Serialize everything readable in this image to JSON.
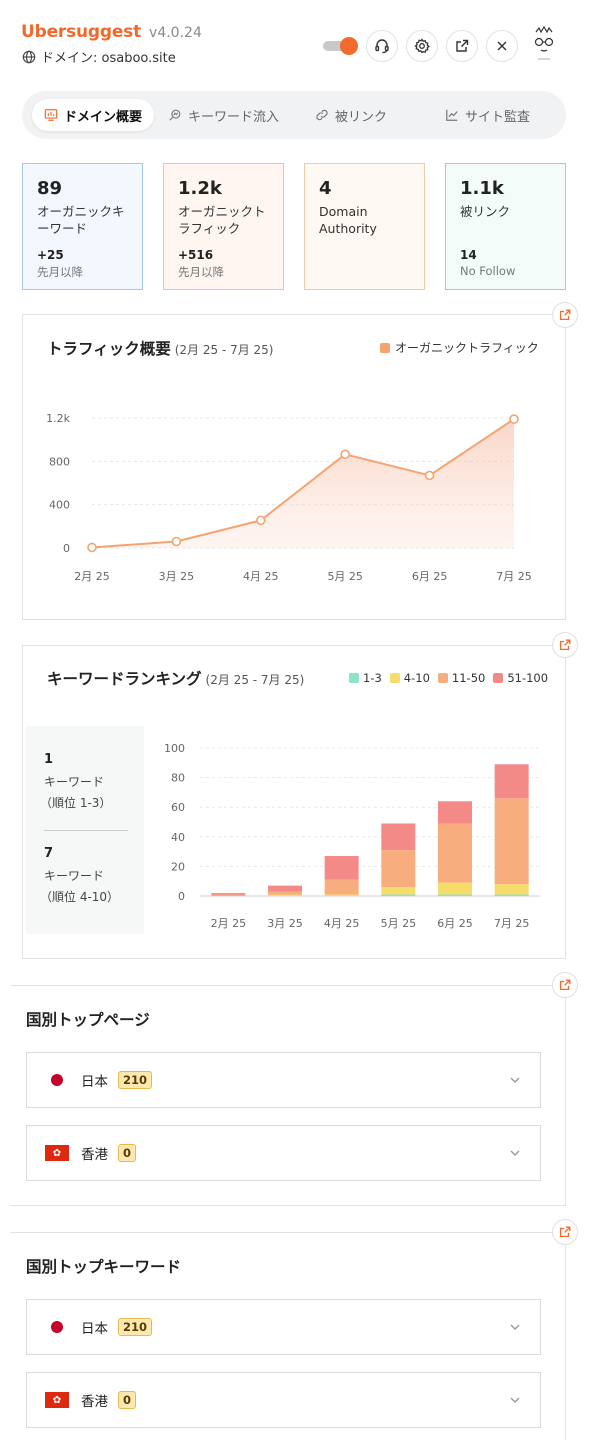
{
  "header": {
    "brand": "Ubersuggest",
    "version": "v4.0.24",
    "domain_label": "ドメイン: osaboo.site",
    "icons": [
      "globe-icon",
      "headset-icon",
      "gear-icon",
      "external-link-icon",
      "close-icon"
    ]
  },
  "tabs": [
    {
      "label": "ドメイン概要",
      "icon": "monitor-chart-icon",
      "active": true
    },
    {
      "label": "キーワード流入",
      "icon": "keyword-search-icon",
      "active": false
    },
    {
      "label": "被リンク",
      "icon": "link-icon",
      "active": false
    },
    {
      "label": "サイト監査",
      "icon": "line-chart-icon",
      "active": false
    }
  ],
  "cards": [
    {
      "value": "89",
      "label": "オーガニックキーワード",
      "delta": "+25",
      "sub": "先月以降",
      "border": "#a9c6ec",
      "bg": "#f3f8fe"
    },
    {
      "value": "1.2k",
      "label": "オーガニックトラフィック",
      "delta": "+516",
      "sub": "先月以降",
      "border": "#f2c2a8",
      "bg": "#fff6f2"
    },
    {
      "value": "4",
      "label": "Domain Authority",
      "delta": "",
      "sub": "",
      "border": "#f4c9a5",
      "bg": "#fff9f4"
    },
    {
      "value": "1.1k",
      "label": "被リンク",
      "delta": "14",
      "sub": "No Follow",
      "border": "#8ed8c6",
      "bg": "#f3fcf9"
    }
  ],
  "traffic": {
    "title": "トラフィック概要",
    "range": "(2月 25 - 7月 25)",
    "legend": "オーガニックトラフィック"
  },
  "ranking": {
    "title": "キーワードランキング",
    "range": "(2月 25 - 7月 25)",
    "legend": [
      "1-3",
      "4-10",
      "11-50",
      "51-100"
    ],
    "side": {
      "top_count": "1",
      "top_label": "キーワード",
      "top_sub": "（順位 1-3）",
      "mid_count": "7",
      "mid_label": "キーワード",
      "mid_sub": "（順位 4-10）"
    }
  },
  "top_pages": {
    "title": "国別トップページ",
    "rows": [
      {
        "country": "日本",
        "count": "210",
        "flag": "jp"
      },
      {
        "country": "香港",
        "count": "0",
        "flag": "hk"
      }
    ]
  },
  "top_keywords": {
    "title": "国別トップキーワード",
    "rows": [
      {
        "country": "日本",
        "count": "210",
        "flag": "jp"
      },
      {
        "country": "香港",
        "count": "0",
        "flag": "hk"
      }
    ]
  },
  "colors": {
    "accent": "#f26b2c",
    "traffic_line": "#f3a470",
    "rank_1_3": "#8ee4c7",
    "rank_4_10": "#f6dd6a",
    "rank_11_50": "#f7ad7d",
    "rank_51_100": "#f48a87"
  },
  "chart_data": [
    {
      "type": "area",
      "title": "トラフィック概要",
      "categories": [
        "2月 25",
        "3月 25",
        "4月 25",
        "5月 25",
        "6月 25",
        "7月 25"
      ],
      "series": [
        {
          "name": "オーガニックトラフィック",
          "values": [
            5,
            60,
            255,
            865,
            670,
            1190
          ]
        }
      ],
      "y_ticks": [
        "0",
        "400",
        "800",
        "1.2k"
      ],
      "ylim": [
        0,
        1200
      ],
      "grid": true,
      "legend_position": "top-right"
    },
    {
      "type": "bar",
      "stacked": true,
      "title": "キーワードランキング",
      "categories": [
        "2月 25",
        "3月 25",
        "4月 25",
        "5月 25",
        "6月 25",
        "7月 25"
      ],
      "series": [
        {
          "name": "1-3",
          "values": [
            0,
            0,
            0,
            1,
            1,
            1
          ]
        },
        {
          "name": "4-10",
          "values": [
            0,
            1,
            1,
            5,
            8,
            7
          ]
        },
        {
          "name": "11-50",
          "values": [
            1,
            2,
            10,
            25,
            40,
            58
          ]
        },
        {
          "name": "51-100",
          "values": [
            1,
            4,
            16,
            18,
            15,
            23
          ]
        }
      ],
      "y_ticks": [
        "0",
        "20",
        "40",
        "60",
        "80",
        "100"
      ],
      "ylim": [
        0,
        100
      ],
      "grid": true,
      "legend_position": "top-right"
    }
  ]
}
